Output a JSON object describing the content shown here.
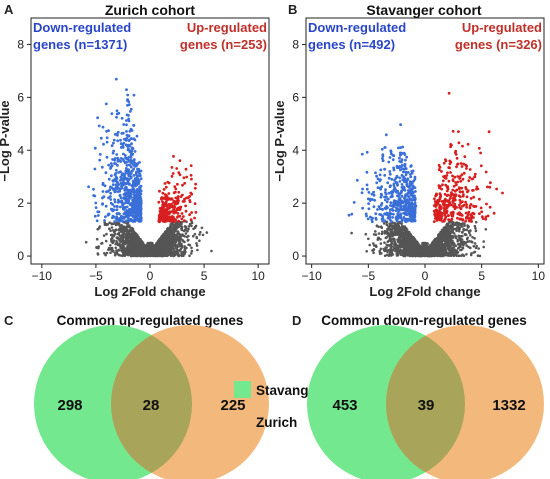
{
  "chart_data": [
    {
      "type": "scatter",
      "panel": "A",
      "title": "Zurich cohort",
      "xlabel": "Log 2Fold change",
      "ylabel": "−Log P-value",
      "xlim": [
        -11,
        11
      ],
      "ylim": [
        -0.3,
        9
      ],
      "xticks": [
        -10,
        -5,
        0,
        5,
        10
      ],
      "yticks": [
        0,
        2,
        4,
        6,
        8
      ],
      "annotations": [
        {
          "lines": [
            "Down-regulated",
            "genes (n=1371)"
          ],
          "color": "#2a46c8"
        },
        {
          "lines": [
            "Up-regulated",
            "genes (n=253)"
          ],
          "color": "#c0302a"
        }
      ],
      "series": [
        {
          "name": "Down-regulated genes",
          "color": "#3a6fd8",
          "count": 1371
        },
        {
          "name": "Up-regulated genes",
          "color": "#d81f1f",
          "count": 253
        }
      ],
      "nonsignificant_color": "#555555",
      "significance_threshold": 1.3
    },
    {
      "type": "scatter",
      "panel": "B",
      "title": "Stavanger cohort",
      "xlabel": "Log 2Fold change",
      "ylabel": "−Log P-value",
      "xlim": [
        -10.5,
        10.5
      ],
      "ylim": [
        -0.3,
        9
      ],
      "xticks": [
        -10,
        -5,
        0,
        5,
        10
      ],
      "yticks": [
        0,
        2,
        4,
        6,
        8
      ],
      "annotations": [
        {
          "lines": [
            "Down-regulated",
            "genes (n=492)"
          ],
          "color": "#2a46c8"
        },
        {
          "lines": [
            "Up-regulated",
            "genes (n=326)"
          ],
          "color": "#c0302a"
        }
      ],
      "series": [
        {
          "name": "Down-regulated genes",
          "color": "#3a6fd8",
          "count": 492
        },
        {
          "name": "Up-regulated genes",
          "color": "#d81f1f",
          "count": 326
        }
      ],
      "nonsignificant_color": "#555555",
      "significance_threshold": 1.3
    },
    {
      "type": "venn",
      "panel": "C",
      "title": "Common up-regulated genes",
      "sets": [
        "Stavanger",
        "Zurich"
      ],
      "values": {
        "Stavanger_only": 298,
        "intersection": 28,
        "Zurich_only": 225
      }
    },
    {
      "type": "venn",
      "panel": "D",
      "title": "Common down-regulated genes",
      "sets": [
        "Stavanger",
        "Zurich"
      ],
      "values": {
        "Stavanger_only": 453,
        "intersection": 39,
        "Zurich_only": 1332
      }
    }
  ],
  "legend": {
    "items": [
      {
        "label": "Stavanger",
        "color": "#73e88e"
      },
      {
        "label": "Zurich",
        "color": "#f3b97c"
      }
    ]
  },
  "colors": {
    "stavanger": "#73e88e",
    "zurich": "#f3b97c",
    "overlap": "#a8a45a",
    "down": "#3a6fd8",
    "up": "#d81f1f",
    "ns": "#555555"
  }
}
